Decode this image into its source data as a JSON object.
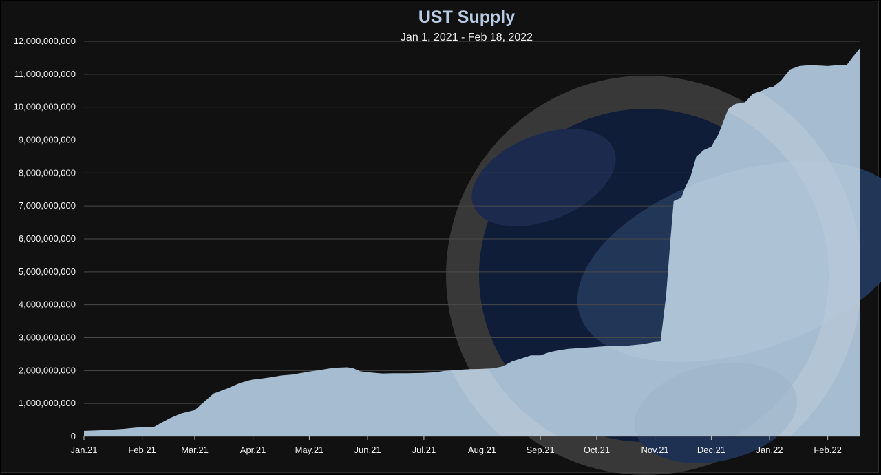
{
  "chart_data": {
    "type": "area",
    "title": "UST Supply",
    "subtitle": "Jan 1, 2021 - Feb 18, 2022",
    "xlabel": "",
    "ylabel": "",
    "ylim": [
      0,
      12000000000
    ],
    "grid": true,
    "legend": "none",
    "colors": {
      "area": "#a6bcd0",
      "background": "#111112",
      "grid": "#4a4a4a",
      "title": "#b8cce4",
      "text": "#f2f2f2"
    },
    "y_ticks": [
      {
        "value": 0,
        "label": "0"
      },
      {
        "value": 1000000000,
        "label": "1,000,000,000"
      },
      {
        "value": 2000000000,
        "label": "2,000,000,000"
      },
      {
        "value": 3000000000,
        "label": "3,000,000,000"
      },
      {
        "value": 4000000000,
        "label": "4,000,000,000"
      },
      {
        "value": 5000000000,
        "label": "5,000,000,000"
      },
      {
        "value": 6000000000,
        "label": "6,000,000,000"
      },
      {
        "value": 7000000000,
        "label": "7,000,000,000"
      },
      {
        "value": 8000000000,
        "label": "8,000,000,000"
      },
      {
        "value": 9000000000,
        "label": "9,000,000,000"
      },
      {
        "value": 10000000000,
        "label": "10,000,000,000"
      },
      {
        "value": 11000000000,
        "label": "11,000,000,000"
      },
      {
        "value": 12000000000,
        "label": "12,000,000,000"
      }
    ],
    "x_ticks": [
      {
        "date": "2021-01-01",
        "label": "Jan.21"
      },
      {
        "date": "2021-02-01",
        "label": "Feb.21"
      },
      {
        "date": "2021-03-01",
        "label": "Mar.21"
      },
      {
        "date": "2021-04-01",
        "label": "Apr.21"
      },
      {
        "date": "2021-05-01",
        "label": "May.21"
      },
      {
        "date": "2021-06-01",
        "label": "Jun.21"
      },
      {
        "date": "2021-07-01",
        "label": "Jul.21"
      },
      {
        "date": "2021-08-01",
        "label": "Aug.21"
      },
      {
        "date": "2021-09-01",
        "label": "Sep.21"
      },
      {
        "date": "2021-10-01",
        "label": "Oct.21"
      },
      {
        "date": "2021-11-01",
        "label": "Nov.21"
      },
      {
        "date": "2021-12-01",
        "label": "Dec.21"
      },
      {
        "date": "2022-01-01",
        "label": "Jan.22"
      },
      {
        "date": "2022-02-01",
        "label": "Feb.22"
      }
    ],
    "series": [
      {
        "x": [
          "2021-01-01",
          "2021-01-12",
          "2021-01-22",
          "2021-01-29",
          "2021-02-07",
          "2021-02-11",
          "2021-02-16",
          "2021-02-22",
          "2021-03-01",
          "2021-03-06",
          "2021-03-11",
          "2021-03-18",
          "2021-03-25",
          "2021-03-31",
          "2021-04-06",
          "2021-04-11",
          "2021-04-16",
          "2021-04-22",
          "2021-05-01",
          "2021-05-06",
          "2021-05-11",
          "2021-05-16",
          "2021-05-21",
          "2021-05-24",
          "2021-05-28",
          "2021-06-01",
          "2021-06-05",
          "2021-06-09",
          "2021-06-15",
          "2021-06-22",
          "2021-07-01",
          "2021-07-07",
          "2021-07-12",
          "2021-07-19",
          "2021-07-25",
          "2021-08-01",
          "2021-08-07",
          "2021-08-12",
          "2021-08-17",
          "2021-08-22",
          "2021-08-27",
          "2021-09-01",
          "2021-09-06",
          "2021-09-11",
          "2021-09-16",
          "2021-09-21",
          "2021-09-26",
          "2021-10-01",
          "2021-10-06",
          "2021-10-11",
          "2021-10-18",
          "2021-10-25",
          "2021-11-01",
          "2021-11-04",
          "2021-11-07",
          "2021-11-09",
          "2021-11-11",
          "2021-11-13",
          "2021-11-15",
          "2021-11-17",
          "2021-11-20",
          "2021-11-23",
          "2021-11-27",
          "2021-12-01",
          "2021-12-05",
          "2021-12-10",
          "2021-12-14",
          "2021-12-19",
          "2021-12-23",
          "2021-12-28",
          "2022-01-01",
          "2022-01-03",
          "2022-01-07",
          "2022-01-12",
          "2022-01-17",
          "2022-01-21",
          "2022-01-25",
          "2022-01-29",
          "2022-02-01",
          "2022-02-05",
          "2022-02-11",
          "2022-02-14",
          "2022-02-18"
        ],
        "values": [
          170000000,
          190000000,
          230000000,
          270000000,
          280000000,
          410000000,
          560000000,
          700000000,
          800000000,
          1050000000,
          1300000000,
          1450000000,
          1620000000,
          1720000000,
          1760000000,
          1800000000,
          1850000000,
          1880000000,
          1970000000,
          2010000000,
          2060000000,
          2090000000,
          2100000000,
          2080000000,
          1980000000,
          1950000000,
          1930000000,
          1910000000,
          1920000000,
          1920000000,
          1930000000,
          1950000000,
          1990000000,
          2020000000,
          2040000000,
          2050000000,
          2070000000,
          2130000000,
          2280000000,
          2370000000,
          2460000000,
          2460000000,
          2560000000,
          2620000000,
          2660000000,
          2680000000,
          2700000000,
          2720000000,
          2740000000,
          2760000000,
          2760000000,
          2800000000,
          2870000000,
          2880000000,
          4300000000,
          5800000000,
          7150000000,
          7200000000,
          7250000000,
          7550000000,
          7900000000,
          8500000000,
          8700000000,
          8800000000,
          9200000000,
          9950000000,
          10100000000,
          10150000000,
          10400000000,
          10500000000,
          10600000000,
          10620000000,
          10800000000,
          11150000000,
          11250000000,
          11270000000,
          11270000000,
          11260000000,
          11250000000,
          11270000000,
          11270000000,
          11500000000,
          11780000000
        ]
      }
    ]
  }
}
